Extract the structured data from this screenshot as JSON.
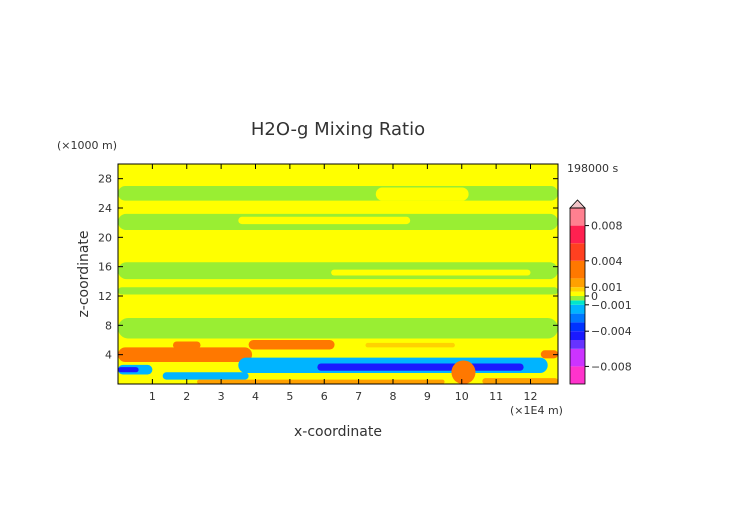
{
  "chart_data": {
    "type": "heatmap",
    "title": "H2O-g Mixing Ratio",
    "xlabel": "x-coordinate",
    "ylabel": "z-coordinate",
    "x_unit": "(×1E4 m)",
    "y_unit": "(×1000 m)",
    "time_label": "198000 s",
    "xlim": [
      0,
      12.8
    ],
    "ylim": [
      0,
      30
    ],
    "x_ticks": [
      1,
      2,
      3,
      4,
      5,
      6,
      7,
      8,
      9,
      10,
      11,
      12
    ],
    "y_ticks": [
      4,
      8,
      12,
      16,
      20,
      24,
      28
    ],
    "colorbar": {
      "range": [
        -0.01,
        0.01
      ],
      "tick_values": [
        0.008,
        0.004,
        0.001,
        0,
        -0.001,
        -0.004,
        -0.008
      ],
      "tick_labels": [
        "0.008",
        "0.004",
        "0.001",
        "0",
        "−0.001",
        "−0.004",
        "−0.008"
      ],
      "levels": [
        {
          "from": -0.01,
          "to": -0.008,
          "color": "#ff33cc"
        },
        {
          "from": -0.008,
          "to": -0.006,
          "color": "#cc33ff"
        },
        {
          "from": -0.006,
          "to": -0.005,
          "color": "#6633ff"
        },
        {
          "from": -0.005,
          "to": -0.004,
          "color": "#1a1aff"
        },
        {
          "from": -0.004,
          "to": -0.003,
          "color": "#0033ff"
        },
        {
          "from": -0.003,
          "to": -0.002,
          "color": "#0077ff"
        },
        {
          "from": -0.002,
          "to": -0.001,
          "color": "#00b4ff"
        },
        {
          "from": -0.001,
          "to": -0.0005,
          "color": "#00e6cc"
        },
        {
          "from": -0.0005,
          "to": 0,
          "color": "#99ee33"
        },
        {
          "from": 0,
          "to": 0.0005,
          "color": "#ffff00"
        },
        {
          "from": 0.0005,
          "to": 0.001,
          "color": "#ffd200"
        },
        {
          "from": 0.001,
          "to": 0.002,
          "color": "#ffa000"
        },
        {
          "from": 0.002,
          "to": 0.004,
          "color": "#ff7800"
        },
        {
          "from": 0.004,
          "to": 0.006,
          "color": "#ff4020"
        },
        {
          "from": 0.006,
          "to": 0.008,
          "color": "#ff2050"
        },
        {
          "from": 0.008,
          "to": 0.01,
          "color": "#ff8090"
        }
      ]
    },
    "field": {
      "background_value": 0.0002,
      "regions": [
        {
          "value": -0.0003,
          "x": [
            0,
            12.8
          ],
          "y": [
            21.0,
            23.2
          ]
        },
        {
          "value": -0.0003,
          "x": [
            0,
            12.8
          ],
          "y": [
            14.3,
            16.6
          ]
        },
        {
          "value": -0.0003,
          "x": [
            0,
            12.8
          ],
          "y": [
            6.2,
            9.0
          ]
        },
        {
          "value": -0.0003,
          "x": [
            0,
            12.8
          ],
          "y": [
            25.0,
            27.0
          ]
        },
        {
          "value": -0.0003,
          "x": [
            0,
            12.8
          ],
          "y": [
            12.2,
            13.2
          ]
        },
        {
          "value": 0.0002,
          "x": [
            3.5,
            8.5
          ],
          "y": [
            21.8,
            22.8
          ]
        },
        {
          "value": 0.0002,
          "x": [
            7.5,
            10.2
          ],
          "y": [
            25.0,
            26.8
          ]
        },
        {
          "value": 0.0002,
          "x": [
            0.5,
            3.0
          ],
          "y": [
            18.6,
            20.0
          ]
        },
        {
          "value": 0.0002,
          "x": [
            6.2,
            12.0
          ],
          "y": [
            14.8,
            15.6
          ]
        },
        {
          "value": 0.0003,
          "x": [
            1.0,
            12.8
          ],
          "y": [
            2.2,
            2.8
          ]
        },
        {
          "value": 0.002,
          "x": [
            0,
            3.9
          ],
          "y": [
            3.0,
            5.0
          ]
        },
        {
          "value": 0.002,
          "x": [
            1.6,
            2.4
          ],
          "y": [
            4.8,
            5.8
          ]
        },
        {
          "value": 0.002,
          "x": [
            3.8,
            6.3
          ],
          "y": [
            4.7,
            6.0
          ]
        },
        {
          "value": 0.002,
          "x": [
            12.3,
            12.8
          ],
          "y": [
            3.5,
            4.6
          ]
        },
        {
          "value": 0.0008,
          "x": [
            7.2,
            9.8
          ],
          "y": [
            5.0,
            5.6
          ]
        },
        {
          "value": -0.002,
          "x": [
            0,
            1.0
          ],
          "y": [
            1.3,
            2.6
          ]
        },
        {
          "value": -0.002,
          "x": [
            1.3,
            3.8
          ],
          "y": [
            0.6,
            1.6
          ]
        },
        {
          "value": -0.002,
          "x": [
            3.5,
            12.5
          ],
          "y": [
            1.5,
            3.6
          ]
        },
        {
          "value": -0.0045,
          "x": [
            5.8,
            11.8
          ],
          "y": [
            1.8,
            2.8
          ]
        },
        {
          "value": -0.0045,
          "x": [
            0,
            0.6
          ],
          "y": [
            1.6,
            2.3
          ]
        },
        {
          "value": 0.003,
          "x": [
            9.7,
            10.4
          ],
          "y": [
            0,
            3.2
          ]
        },
        {
          "value": 0.001,
          "x": [
            2.3,
            9.5
          ],
          "y": [
            0,
            0.6
          ]
        },
        {
          "value": 0.001,
          "x": [
            10.6,
            12.8
          ],
          "y": [
            0,
            0.8
          ]
        }
      ]
    }
  }
}
